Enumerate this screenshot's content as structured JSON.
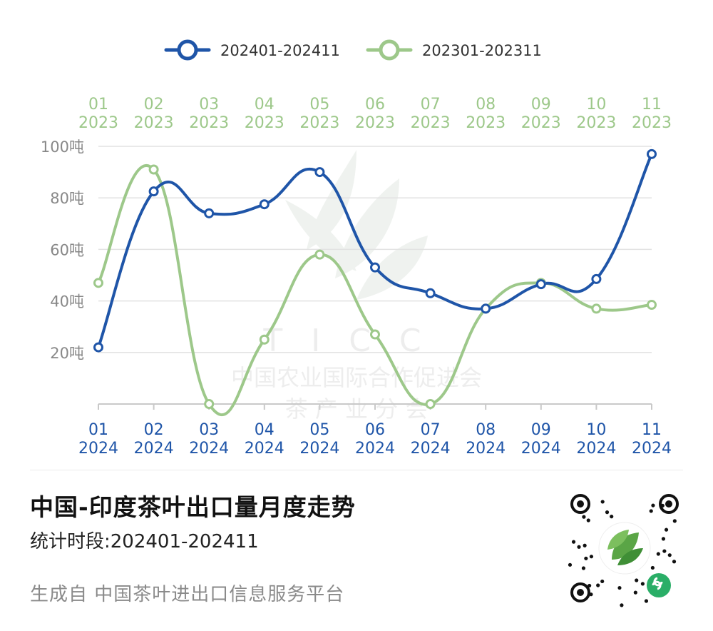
{
  "chart_data": {
    "type": "line",
    "title": "中国-印度茶叶出口量月度走势",
    "subtitle": "统计时段:202401-202411",
    "legend_position": "top",
    "y_unit": "吨",
    "ylim": [
      0,
      100
    ],
    "y_ticks": [
      "20吨",
      "40吨",
      "60吨",
      "80吨",
      "100吨"
    ],
    "grid": true,
    "x_bottom": [
      {
        "m": "01",
        "y": "2024"
      },
      {
        "m": "02",
        "y": "2024"
      },
      {
        "m": "03",
        "y": "2024"
      },
      {
        "m": "04",
        "y": "2024"
      },
      {
        "m": "05",
        "y": "2024"
      },
      {
        "m": "06",
        "y": "2024"
      },
      {
        "m": "07",
        "y": "2024"
      },
      {
        "m": "08",
        "y": "2024"
      },
      {
        "m": "09",
        "y": "2024"
      },
      {
        "m": "10",
        "y": "2024"
      },
      {
        "m": "11",
        "y": "2024"
      }
    ],
    "x_top": [
      {
        "m": "01",
        "y": "2023"
      },
      {
        "m": "02",
        "y": "2023"
      },
      {
        "m": "03",
        "y": "2023"
      },
      {
        "m": "04",
        "y": "2023"
      },
      {
        "m": "05",
        "y": "2023"
      },
      {
        "m": "06",
        "y": "2023"
      },
      {
        "m": "07",
        "y": "2023"
      },
      {
        "m": "08",
        "y": "2023"
      },
      {
        "m": "09",
        "y": "2023"
      },
      {
        "m": "10",
        "y": "2023"
      },
      {
        "m": "11",
        "y": "2023"
      }
    ],
    "series": [
      {
        "name": "202401-202411",
        "color": "#1f55a8",
        "values": [
          22,
          82.5,
          74,
          77.5,
          90,
          53,
          43,
          37,
          46.5,
          48.5,
          97
        ]
      },
      {
        "name": "202301-202311",
        "color": "#9dc88a",
        "values": [
          47,
          91,
          0,
          25,
          58,
          27,
          0,
          37,
          47,
          37,
          38.5
        ]
      }
    ]
  },
  "watermark": {
    "mark": "TICC",
    "org_line1": "中国农业国际合作促进会",
    "org_line2": "茶 产 业 分 会"
  },
  "footer": {
    "title": "中国-印度茶叶出口量月度走势",
    "period": "统计时段:202401-202411",
    "source": "生成自 中国茶叶进出口信息服务平台"
  },
  "qr_icon": "mini-program-qr-code-icon",
  "colors": {
    "series1": "#1f55a8",
    "series2": "#9dc88a",
    "axis_text_bottom": "#1f55a8",
    "axis_text_top": "#9dc88a"
  }
}
